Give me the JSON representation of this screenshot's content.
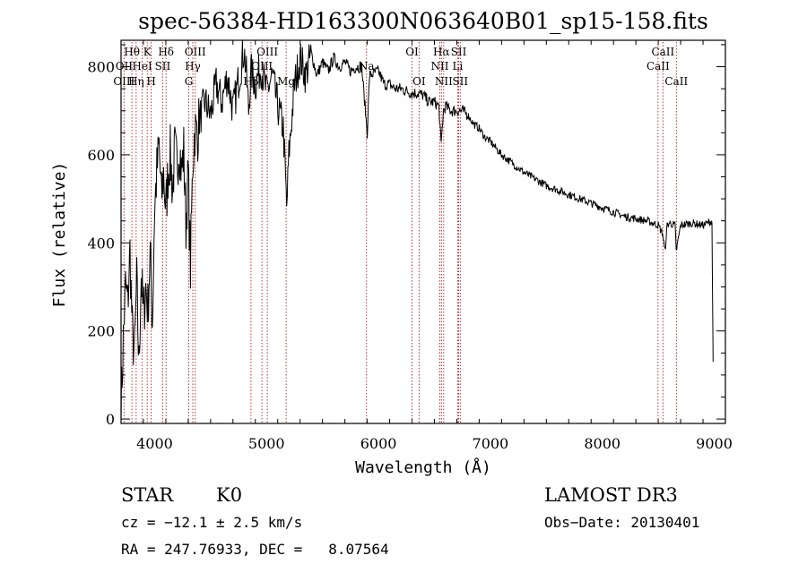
{
  "chart_data": {
    "type": "line",
    "title": "spec-56384-HD163300N063640B01_sp15-158.fits",
    "xlabel": "Wavelength (Å)",
    "ylabel": "Flux (relative)",
    "xlim": [
      3700,
      9100
    ],
    "ylim": [
      -10,
      860
    ],
    "x_ticks": [
      4000,
      5000,
      6000,
      7000,
      8000,
      9000
    ],
    "y_ticks": [
      0,
      200,
      400,
      600,
      800
    ],
    "grid": false,
    "series": [
      {
        "name": "flux",
        "points": [
          [
            3700,
            20
          ],
          [
            3720,
            180
          ],
          [
            3740,
            300
          ],
          [
            3760,
            260
          ],
          [
            3780,
            380
          ],
          [
            3800,
            200
          ],
          [
            3820,
            150
          ],
          [
            3840,
            310
          ],
          [
            3860,
            120
          ],
          [
            3880,
            330
          ],
          [
            3900,
            230
          ],
          [
            3920,
            300
          ],
          [
            3940,
            250
          ],
          [
            3960,
            380
          ],
          [
            3980,
            220
          ],
          [
            4000,
            480
          ],
          [
            4020,
            560
          ],
          [
            4040,
            620
          ],
          [
            4060,
            500
          ],
          [
            4080,
            560
          ],
          [
            4100,
            470
          ],
          [
            4120,
            560
          ],
          [
            4140,
            600
          ],
          [
            4160,
            520
          ],
          [
            4180,
            610
          ],
          [
            4200,
            570
          ],
          [
            4220,
            630
          ],
          [
            4240,
            560
          ],
          [
            4260,
            610
          ],
          [
            4280,
            440
          ],
          [
            4300,
            560
          ],
          [
            4320,
            340
          ],
          [
            4340,
            580
          ],
          [
            4360,
            660
          ],
          [
            4380,
            640
          ],
          [
            4400,
            680
          ],
          [
            4450,
            720
          ],
          [
            4500,
            690
          ],
          [
            4550,
            760
          ],
          [
            4600,
            720
          ],
          [
            4650,
            780
          ],
          [
            4700,
            700
          ],
          [
            4750,
            770
          ],
          [
            4800,
            840
          ],
          [
            4820,
            780
          ],
          [
            4840,
            700
          ],
          [
            4860,
            790
          ],
          [
            4900,
            760
          ],
          [
            4950,
            800
          ],
          [
            5000,
            740
          ],
          [
            5050,
            780
          ],
          [
            5100,
            710
          ],
          [
            5150,
            660
          ],
          [
            5180,
            480
          ],
          [
            5200,
            600
          ],
          [
            5250,
            760
          ],
          [
            5300,
            820
          ],
          [
            5350,
            780
          ],
          [
            5400,
            830
          ],
          [
            5450,
            780
          ],
          [
            5500,
            810
          ],
          [
            5550,
            790
          ],
          [
            5600,
            820
          ],
          [
            5650,
            800
          ],
          [
            5700,
            810
          ],
          [
            5750,
            790
          ],
          [
            5800,
            800
          ],
          [
            5850,
            800
          ],
          [
            5900,
            650
          ],
          [
            5920,
            780
          ],
          [
            6000,
            790
          ],
          [
            6050,
            760
          ],
          [
            6100,
            760
          ],
          [
            6150,
            750
          ],
          [
            6200,
            750
          ],
          [
            6250,
            745
          ],
          [
            6300,
            740
          ],
          [
            6350,
            740
          ],
          [
            6400,
            735
          ],
          [
            6450,
            720
          ],
          [
            6500,
            720
          ],
          [
            6540,
            710
          ],
          [
            6560,
            620
          ],
          [
            6580,
            700
          ],
          [
            6600,
            710
          ],
          [
            6650,
            700
          ],
          [
            6700,
            700
          ],
          [
            6750,
            700
          ],
          [
            6800,
            690
          ],
          [
            6850,
            670
          ],
          [
            6900,
            660
          ],
          [
            6950,
            640
          ],
          [
            7000,
            630
          ],
          [
            7100,
            600
          ],
          [
            7200,
            580
          ],
          [
            7300,
            560
          ],
          [
            7400,
            545
          ],
          [
            7500,
            530
          ],
          [
            7600,
            520
          ],
          [
            7700,
            510
          ],
          [
            7800,
            500
          ],
          [
            7900,
            490
          ],
          [
            8000,
            480
          ],
          [
            8100,
            470
          ],
          [
            8200,
            460
          ],
          [
            8300,
            455
          ],
          [
            8400,
            450
          ],
          [
            8500,
            440
          ],
          [
            8540,
            420
          ],
          [
            8560,
            380
          ],
          [
            8580,
            440
          ],
          [
            8600,
            445
          ],
          [
            8650,
            440
          ],
          [
            8660,
            380
          ],
          [
            8700,
            440
          ],
          [
            8800,
            445
          ],
          [
            8900,
            440
          ],
          [
            8980,
            450
          ],
          [
            8990,
            130
          ]
        ]
      }
    ],
    "lines": [
      {
        "label": "Hθ",
        "x": 3797,
        "tier": 1
      },
      {
        "label": "OII",
        "x": 3727,
        "tier": 2
      },
      {
        "label": "OIII",
        "x": 3727,
        "tier": 3
      },
      {
        "label": "K",
        "x": 3934,
        "tier": 1
      },
      {
        "label": "HeI",
        "x": 3889,
        "tier": 2
      },
      {
        "label": "Hη",
        "x": 3835,
        "tier": 3
      },
      {
        "label": "SII",
        "x": 4072,
        "tier": 2
      },
      {
        "label": "H",
        "x": 3969,
        "tier": 3
      },
      {
        "label": "Hδ",
        "x": 4102,
        "tier": 1
      },
      {
        "label": "OIII",
        "x": 4363,
        "tier": 1
      },
      {
        "label": "Hγ",
        "x": 4341,
        "tier": 2
      },
      {
        "label": "G",
        "x": 4305,
        "tier": 3
      },
      {
        "label": "OIII",
        "x": 5007,
        "tier": 1
      },
      {
        "label": "OIII",
        "x": 4959,
        "tier": 2
      },
      {
        "label": "Hβ",
        "x": 4861,
        "tier": 3
      },
      {
        "label": "Mg",
        "x": 5175,
        "tier": 3
      },
      {
        "label": "Na",
        "x": 5893,
        "tier": 2
      },
      {
        "label": "OI",
        "x": 6300,
        "tier": 1
      },
      {
        "label": "OI",
        "x": 6363,
        "tier": 3
      },
      {
        "label": "Hα",
        "x": 6563,
        "tier": 1
      },
      {
        "label": "SII",
        "x": 6717,
        "tier": 1
      },
      {
        "label": "NII",
        "x": 6548,
        "tier": 2
      },
      {
        "label": "Li",
        "x": 6708,
        "tier": 2
      },
      {
        "label": "NII",
        "x": 6583,
        "tier": 3
      },
      {
        "label": "SII",
        "x": 6731,
        "tier": 3
      },
      {
        "label": "CaII",
        "x": 8542,
        "tier": 1
      },
      {
        "label": "CaII",
        "x": 8498,
        "tier": 2
      },
      {
        "label": "CaII",
        "x": 8662,
        "tier": 3
      }
    ]
  },
  "info": {
    "object_class": "STAR",
    "subclass": "K0",
    "survey": "LAMOST DR3",
    "redshift": "cz = −12.1 ± 2.5 km/s",
    "obs_date": "Obs−Date: 20130401",
    "coords": "RA = 247.76933, DEC =   8.07564"
  },
  "colors": {
    "spectrum": "#000000",
    "line_markers": "#b22222",
    "axes": "#000000"
  }
}
